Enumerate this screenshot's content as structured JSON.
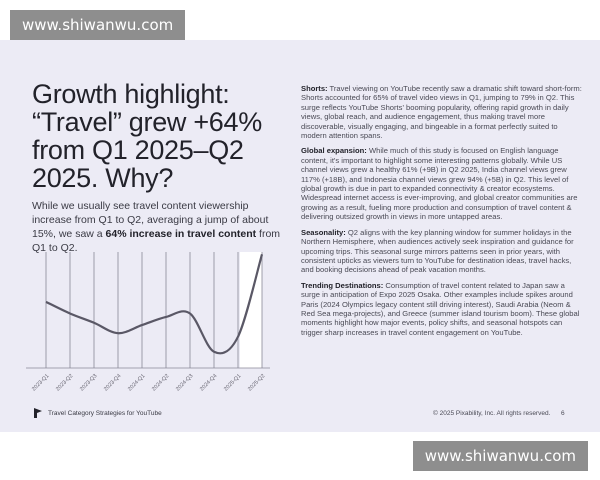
{
  "watermark": "www.shiwanwu.com",
  "title": "Growth highlight: “Travel” grew +64% from Q1 2025–Q2 2025. Why?",
  "intro": {
    "text": "While we usually see travel content viewership increase from Q1 to Q2, averaging a jump of about 15%, we saw a ",
    "bold": "64% increase in travel content",
    "tail": " from Q1 to Q2."
  },
  "sections": [
    {
      "heading": "Shorts:",
      "body": " Travel viewing on YouTube recently saw a dramatic shift toward short-form: Shorts accounted for 65% of travel video views in Q1, jumping to 79% in Q2. This surge reflects YouTube Shorts' booming popularity, offering rapid growth in daily views, global reach, and audience engagement, thus making travel more discoverable, visually engaging, and bingeable in a format perfectly suited to modern attention spans."
    },
    {
      "heading": "Global expansion:",
      "body": " While much of this study is focused on English language content, it's important to highlight some interesting patterns globally. While US channel views grew a healthy 61% (+9B) in Q2 2025, India channel views grew 117% (+18B), and Indonesia channel views grew 94% (+5B) in Q2. This level of global growth is due in part to expanded connectivity & creator ecosystems. Widespread internet access is ever-improving, and global creator communities are growing as a result, fueling more production and consumption of travel content & delivering outsized growth in views in more untapped areas."
    },
    {
      "heading": "Seasonality:",
      "body": " Q2 aligns with the key planning window for summer holidays in the Northern Hemisphere, when audiences actively seek inspiration and guidance for upcoming trips. This seasonal surge mirrors patterns seen in prior years, with consistent upticks as viewers turn to YouTube for destination ideas, travel hacks, and booking decisions ahead of peak vacation months."
    },
    {
      "heading": "Trending Destinations:",
      "body": " Consumption of travel content related to Japan saw a surge in anticipation of Expo 2025 Osaka. Other examples include spikes around Paris (2024 Olympics legacy content still driving interest), Saudi Arabia (Neom & Red Sea mega-projects), and Greece (summer island tourism boom). These global moments highlight how major events, policy shifts, and seasonal hotspots can trigger sharp increases in travel content engagement on YouTube."
    }
  ],
  "footer": {
    "left": "Travel Category Strategies for YouTube",
    "copyright": "© 2025 Pixability, Inc. All rights reserved.",
    "page": "6"
  },
  "chart_data": {
    "type": "line",
    "categories": [
      "2023-Q1",
      "2023-Q2",
      "2023-Q3",
      "2023-Q4",
      "2024-Q1",
      "2024-Q2",
      "2024-Q3",
      "2024-Q4",
      "2025-Q1",
      "2025-Q2"
    ],
    "values": [
      57,
      47,
      39,
      30,
      37,
      44,
      47,
      14,
      27,
      98
    ],
    "ylim": [
      0,
      100
    ],
    "y_axis_labels": false,
    "grid": "vertical",
    "highlight": [
      "2025-Q1",
      "2025-Q2"
    ],
    "line_color": "#5a5866"
  }
}
